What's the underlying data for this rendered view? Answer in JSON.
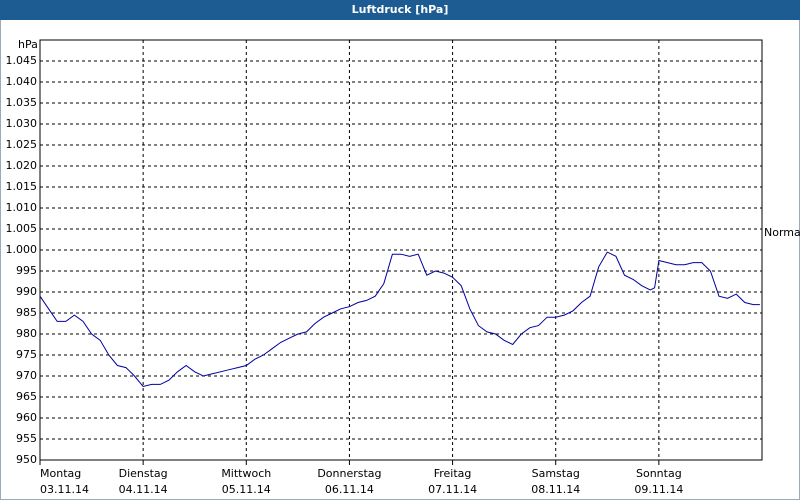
{
  "chart_data": {
    "type": "line",
    "title": "Luftdruck [hPa]",
    "y_label": "hPa",
    "x": [
      0,
      2,
      4,
      6,
      8,
      10,
      12,
      14,
      16,
      18,
      20,
      22,
      24,
      26,
      28,
      30,
      32,
      34,
      36,
      38,
      40,
      42,
      44,
      46,
      48,
      50,
      52,
      54,
      56,
      58,
      60,
      62,
      64,
      66,
      68,
      70,
      72,
      74,
      76,
      78,
      80,
      82,
      84,
      86,
      88,
      90,
      92,
      94,
      96,
      98,
      100,
      102,
      104,
      106,
      108,
      110,
      112,
      114,
      116,
      118,
      120,
      122,
      124,
      126,
      128,
      130,
      132,
      134,
      136,
      138,
      140,
      142,
      143,
      144,
      146,
      148,
      150,
      152,
      154,
      156,
      158,
      160,
      162,
      164,
      166,
      167.5
    ],
    "series": [
      {
        "name": "Luftdruck",
        "color": "#0000a0",
        "values": [
          989,
          986,
          983,
          983,
          984.5,
          983,
          980,
          978.5,
          975,
          972.5,
          972,
          970,
          967.5,
          968,
          968,
          969,
          971,
          972.5,
          971,
          970,
          970.5,
          971,
          971.5,
          972,
          972.5,
          974,
          975,
          976.5,
          978,
          979,
          980,
          980.5,
          982.5,
          984,
          985,
          986,
          986.5,
          987.5,
          988,
          989,
          992,
          999,
          999,
          998.5,
          999,
          994,
          995,
          994.5,
          993.5,
          991.5,
          986,
          982,
          980.5,
          980,
          978.5,
          977.5,
          980,
          981.5,
          982,
          984,
          984,
          984.5,
          985.5,
          987.5,
          989,
          996,
          999.5,
          998.5,
          994,
          993,
          991.5,
          990.5,
          991,
          997.5,
          997,
          996.5,
          996.5,
          997,
          997,
          995,
          989,
          988.5,
          989.5,
          987.5,
          987,
          987
        ]
      }
    ],
    "xlim": [
      0,
      168
    ],
    "xticks": [
      {
        "value": 0,
        "label": "Montag",
        "date": "03.11.14"
      },
      {
        "value": 24,
        "label": "Dienstag",
        "date": "04.11.14"
      },
      {
        "value": 48,
        "label": "Mittwoch",
        "date": "05.11.14"
      },
      {
        "value": 72,
        "label": "Donnerstag",
        "date": "06.11.14"
      },
      {
        "value": 96,
        "label": "Freitag",
        "date": "07.11.14"
      },
      {
        "value": 120,
        "label": "Samstag",
        "date": "08.11.14"
      },
      {
        "value": 144,
        "label": "Sonntag",
        "date": "09.11.14"
      }
    ],
    "ylim": [
      950,
      1050
    ],
    "yticks": [
      950,
      955,
      960,
      965,
      970,
      975,
      980,
      985,
      990,
      995,
      {
        "value": 1000,
        "label": "1.000"
      },
      {
        "value": 1005,
        "label": "1.005"
      },
      {
        "value": 1010,
        "label": "1.010"
      },
      {
        "value": 1015,
        "label": "1.015"
      },
      {
        "value": 1020,
        "label": "1.020"
      },
      {
        "value": 1025,
        "label": "1.025"
      },
      {
        "value": 1030,
        "label": "1.030"
      },
      {
        "value": 1035,
        "label": "1.035"
      },
      {
        "value": 1040,
        "label": "1.040"
      },
      {
        "value": 1045,
        "label": "1.045"
      }
    ],
    "grid": true,
    "annotation": {
      "text": "Normal",
      "value": 1004
    }
  }
}
